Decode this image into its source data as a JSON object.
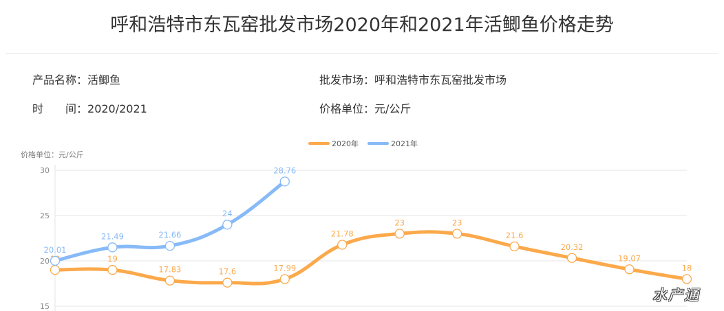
{
  "page": {
    "title": "呼和浩特市东瓦窑批发市场2020年和2021年活鲫鱼价格走势",
    "info": {
      "product_label": "产品名称：",
      "product_value": "活鲫鱼",
      "market_label": "批发市场：",
      "market_value": "呼和浩特市东瓦窑批发市场",
      "time_label": "时　　间：",
      "time_value": "2020/2021",
      "unit_label": "价格单位：",
      "unit_value": "元/公斤"
    },
    "watermark": "水产通"
  },
  "chart_data": {
    "type": "line",
    "ylabel": "价格单位：元/公斤",
    "ylim": [
      15,
      30
    ],
    "yticks": [
      "15",
      "20",
      "25",
      "30"
    ],
    "grid": true,
    "legend_position": "top-center",
    "series": [
      {
        "name": "2020年",
        "color": "#fba94b",
        "values": [
          19,
          19,
          17.83,
          17.6,
          17.99,
          21.78,
          23,
          23,
          21.6,
          20.32,
          19.07,
          18
        ]
      },
      {
        "name": "2021年",
        "color": "#87baf7",
        "values": [
          20.01,
          21.49,
          21.66,
          24,
          28.76
        ]
      }
    ]
  }
}
